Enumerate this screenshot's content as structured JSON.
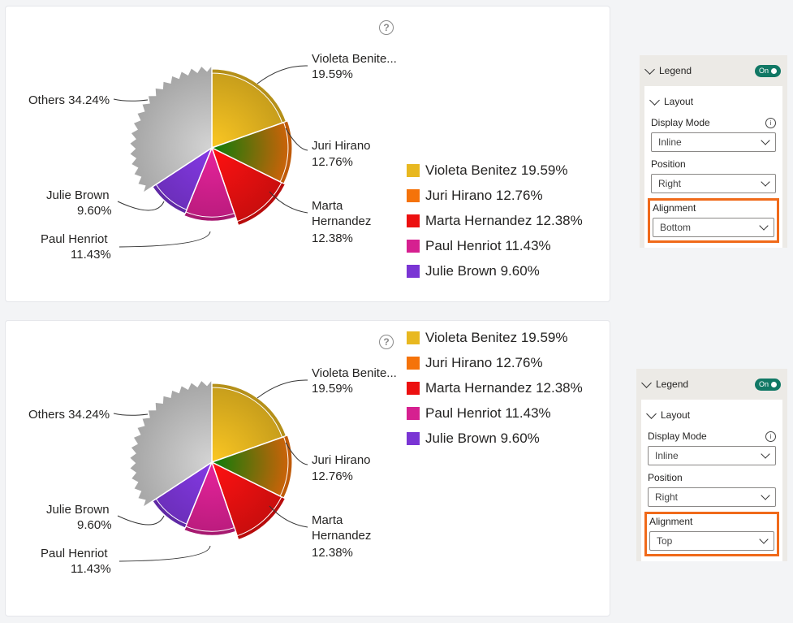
{
  "visuals": [
    {
      "chart_data": {
        "type": "pie",
        "slices": [
          {
            "name": "Violeta Benitez",
            "value": 19.59,
            "color": "#e8b820",
            "label_name": "Violeta Benite...",
            "label_value": "19.59%"
          },
          {
            "name": "Juri Hirano",
            "value": 12.76,
            "color": "#f5730a",
            "label_name": "Juri Hirano",
            "label_value": "12.76%"
          },
          {
            "name": "Marta Hernandez",
            "value": 12.38,
            "color": "#ec1010",
            "label_name": "Marta Hernandez",
            "label_value": "12.38%"
          },
          {
            "name": "Paul Henriot",
            "value": 11.43,
            "color": "#d62090",
            "label_name": "Paul Henriot",
            "label_value": "11.43%"
          },
          {
            "name": "Julie Brown",
            "value": 9.6,
            "color": "#7a35d4",
            "label_name": "Julie Brown",
            "label_value": "9.60%"
          },
          {
            "name": "Others",
            "value": 34.24,
            "color": "#c4c4c4",
            "label_name": "Others 34.24%"
          }
        ],
        "legend_position": "right",
        "legend_alignment": "bottom"
      },
      "help_glyph": "?",
      "legend": [
        {
          "text": "Violeta Benitez 19.59%",
          "color": "#e8b820"
        },
        {
          "text": "Juri Hirano 12.76%",
          "color": "#f5730a"
        },
        {
          "text": "Marta Hernandez 12.38%",
          "color": "#ec1010"
        },
        {
          "text": "Paul Henriot 11.43%",
          "color": "#d62090"
        },
        {
          "text": "Julie Brown 9.60%",
          "color": "#7a35d4"
        }
      ],
      "labels": {
        "others": "Others 34.24%",
        "violeta_name": "Violeta Benite...",
        "violeta_value": "19.59%",
        "juri_name": "Juri Hirano",
        "juri_value": "12.76%",
        "marta_name_1": "Marta",
        "marta_name_2": "Hernandez",
        "marta_value": "12.38%",
        "julie_name": "Julie Brown",
        "julie_value": "9.60%",
        "paul_name": "Paul Henriot",
        "paul_value": "11.43%"
      },
      "panel": {
        "legend_title": "Legend",
        "toggle": "On",
        "layout_title": "Layout",
        "display_mode_label": "Display Mode",
        "display_mode_value": "Inline",
        "position_label": "Position",
        "position_value": "Right",
        "alignment_label": "Alignment",
        "alignment_value": "Bottom",
        "info_glyph": "i"
      }
    },
    {
      "chart_data": {
        "type": "pie",
        "slices": [
          {
            "name": "Violeta Benitez",
            "value": 19.59,
            "color": "#e8b820"
          },
          {
            "name": "Juri Hirano",
            "value": 12.76,
            "color": "#f5730a"
          },
          {
            "name": "Marta Hernandez",
            "value": 12.38,
            "color": "#ec1010"
          },
          {
            "name": "Paul Henriot",
            "value": 11.43,
            "color": "#d62090"
          },
          {
            "name": "Julie Brown",
            "value": 9.6,
            "color": "#7a35d4"
          },
          {
            "name": "Others",
            "value": 34.24,
            "color": "#c4c4c4"
          }
        ],
        "legend_position": "right",
        "legend_alignment": "top"
      },
      "help_glyph": "?",
      "legend": [
        {
          "text": "Violeta Benitez 19.59%",
          "color": "#e8b820"
        },
        {
          "text": "Juri Hirano 12.76%",
          "color": "#f5730a"
        },
        {
          "text": "Marta Hernandez 12.38%",
          "color": "#ec1010"
        },
        {
          "text": "Paul Henriot 11.43%",
          "color": "#d62090"
        },
        {
          "text": "Julie Brown 9.60%",
          "color": "#7a35d4"
        }
      ],
      "labels": {
        "others": "Others 34.24%",
        "violeta_name": "Violeta Benite...",
        "violeta_value": "19.59%",
        "juri_name": "Juri Hirano",
        "juri_value": "12.76%",
        "marta_name_1": "Marta",
        "marta_name_2": "Hernandez",
        "marta_value": "12.38%",
        "julie_name": "Julie Brown",
        "julie_value": "9.60%",
        "paul_name": "Paul Henriot",
        "paul_value": "11.43%"
      },
      "panel": {
        "legend_title": "Legend",
        "toggle": "On",
        "layout_title": "Layout",
        "display_mode_label": "Display Mode",
        "display_mode_value": "Inline",
        "position_label": "Position",
        "position_value": "Right",
        "alignment_label": "Alignment",
        "alignment_value": "Top",
        "info_glyph": "i"
      }
    }
  ],
  "colors": {
    "highlight": "#f06a1a",
    "toggle_on": "#117865"
  }
}
